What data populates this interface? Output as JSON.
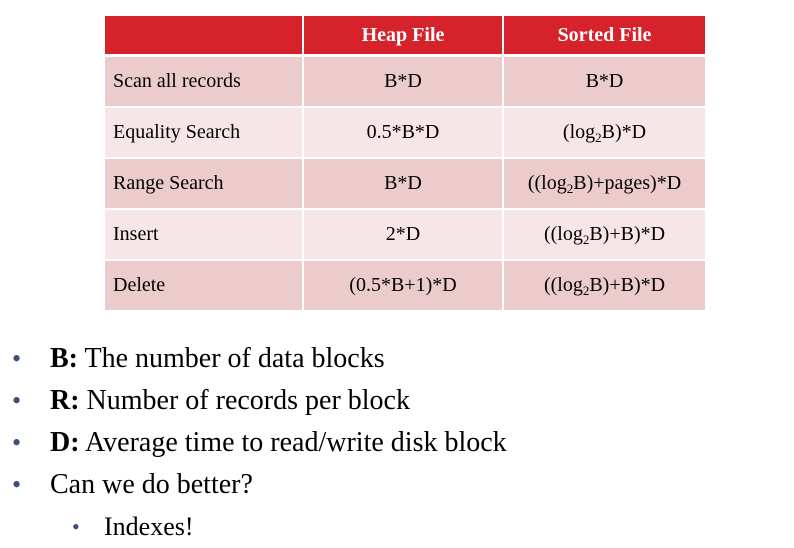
{
  "table": {
    "headers": [
      "",
      "Heap File",
      "Sorted File"
    ],
    "rows": [
      {
        "op": "Scan all records",
        "heap": "B*D",
        "sorted": {
          "pre": "B*D",
          "sub": "",
          "post": ""
        }
      },
      {
        "op": "Equality Search",
        "heap": "0.5*B*D",
        "sorted": {
          "pre": "(log",
          "sub": "2",
          "post": "B)*D"
        }
      },
      {
        "op": "Range Search",
        "heap": "B*D",
        "sorted": {
          "pre": "((log",
          "sub": "2",
          "post": "B)+pages)*D"
        }
      },
      {
        "op": "Insert",
        "heap": "2*D",
        "sorted": {
          "pre": "((log",
          "sub": "2",
          "post": "B)+B)*D"
        }
      },
      {
        "op": "Delete",
        "heap": "(0.5*B+1)*D",
        "sorted": {
          "pre": "((log",
          "sub": "2",
          "post": "B)+B)*D"
        }
      }
    ]
  },
  "bullets": [
    {
      "term": "B:",
      "text": " The number of data blocks"
    },
    {
      "term": "R:",
      "text": " Number of records per block"
    },
    {
      "term": "D:",
      "text": " Average time to read/write disk block"
    },
    {
      "term": "",
      "text": "Can we do better?"
    }
  ],
  "sub_bullets": [
    {
      "text": "Indexes!"
    }
  ],
  "colors": {
    "header_bg": "#d6222b",
    "row_dark": "#eccbcc",
    "row_light": "#f6e6e7",
    "bullet": "#3b4f7a"
  }
}
